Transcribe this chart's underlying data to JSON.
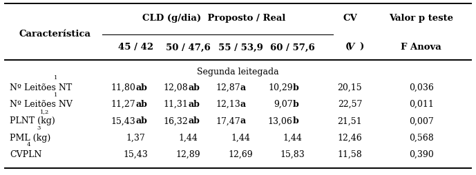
{
  "section_label": "Segunda leitegada",
  "rows": [
    {
      "col0": "Nº Leitões NT",
      "col0_super": "1",
      "col1": "11,80",
      "col1_bold": "ab",
      "col2": "12,08",
      "col2_bold": "ab",
      "col3": "12,87",
      "col3_bold": "a",
      "col4": "10,29",
      "col4_bold": "b",
      "col5": "20,15",
      "col6": "0,036"
    },
    {
      "col0": "Nº Leitões NV",
      "col0_super": "1",
      "col1": "11,27",
      "col1_bold": "ab",
      "col2": "11,31",
      "col2_bold": "ab",
      "col3": "12,13",
      "col3_bold": "a",
      "col4": "9,07",
      "col4_bold": "b",
      "col5": "22,57",
      "col6": "0,011"
    },
    {
      "col0": "PLNT (kg)",
      "col0_super": "1,2",
      "col1": "15,43",
      "col1_bold": "ab",
      "col2": "16,32",
      "col2_bold": "ab",
      "col3": "17,47",
      "col3_bold": "a",
      "col4": "13,06",
      "col4_bold": "b",
      "col5": "21,51",
      "col6": "0,007"
    },
    {
      "col0": "PML (kg)",
      "col0_super": "3",
      "col1": "1,37",
      "col1_bold": "",
      "col2": "1,44",
      "col2_bold": "",
      "col3": "1,44",
      "col3_bold": "",
      "col4": "1,44",
      "col4_bold": "",
      "col5": "12,46",
      "col6": "0,568"
    },
    {
      "col0": "CVPLN",
      "col0_super": "4",
      "col1": "15,43",
      "col1_bold": "",
      "col2": "12,89",
      "col2_bold": "",
      "col3": "12,69",
      "col3_bold": "",
      "col4": "15,83",
      "col4_bold": "",
      "col5": "11,58",
      "col6": "0,390"
    }
  ],
  "background_color": "#ffffff",
  "font_size": 9.0,
  "header_font_size": 9.5
}
